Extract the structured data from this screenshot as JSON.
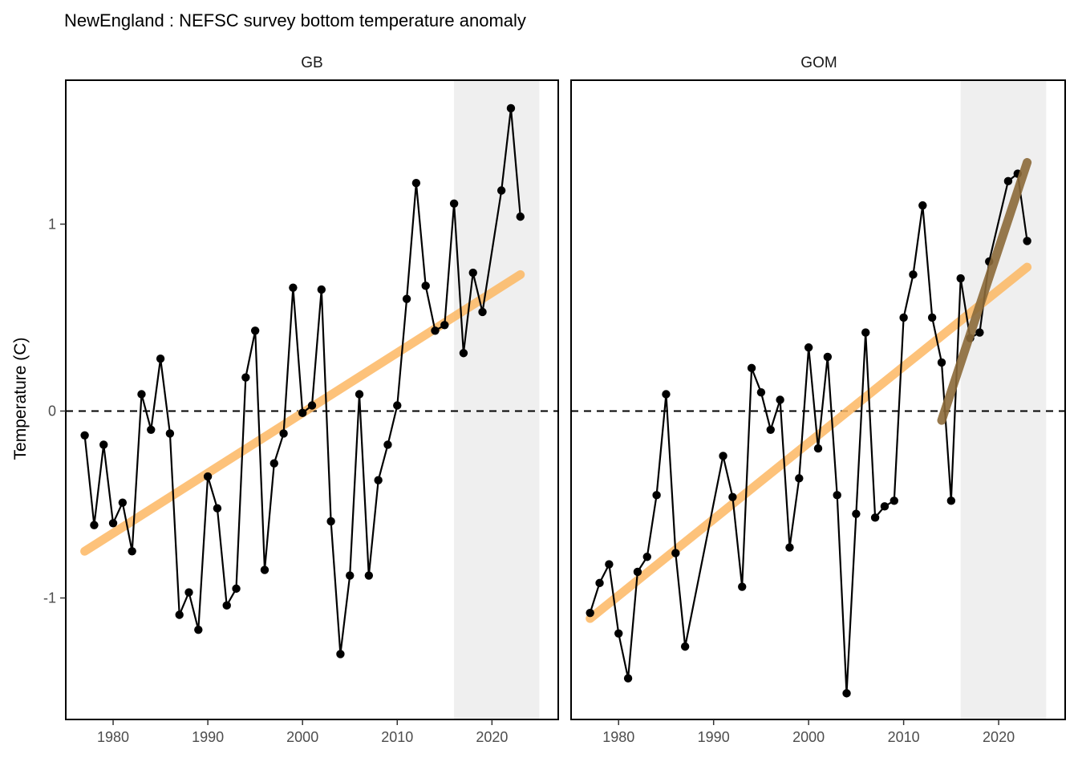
{
  "chart_data": {
    "type": "line",
    "title": "NewEngland : NEFSC survey bottom temperature anomaly",
    "ylabel": "Temperature (C)",
    "xlabel": "",
    "xlim": [
      1975,
      2027
    ],
    "ylim": [
      -1.65,
      1.77
    ],
    "x_ticks": [
      1980,
      1990,
      2000,
      2010,
      2020
    ],
    "y_ticks": [
      -1,
      0,
      1
    ],
    "reference_line": 0,
    "grid": false,
    "colors": {
      "series": "#000000",
      "long_trend": "#FDB863",
      "recent_trend": "#8C6B3A",
      "shade": "#EFEFEF",
      "reference": "#000000"
    },
    "panels": [
      {
        "name": "GB",
        "shade": [
          2016,
          2025
        ],
        "x": [
          1977,
          1978,
          1979,
          1980,
          1981,
          1982,
          1983,
          1984,
          1985,
          1986,
          1987,
          1988,
          1989,
          1990,
          1991,
          1992,
          1993,
          1994,
          1995,
          1996,
          1997,
          1998,
          1999,
          2000,
          2001,
          2002,
          2003,
          2004,
          2005,
          2006,
          2007,
          2008,
          2009,
          2010,
          2011,
          2012,
          2013,
          2014,
          2015,
          2016,
          2017,
          2018,
          2019,
          2021,
          2022,
          2023
        ],
        "y": [
          -0.13,
          -0.61,
          -0.18,
          -0.6,
          -0.49,
          -0.75,
          0.09,
          -0.1,
          0.28,
          -0.12,
          -1.09,
          -0.97,
          -1.17,
          -0.35,
          -0.52,
          -1.04,
          -0.95,
          0.18,
          0.43,
          -0.85,
          -0.28,
          -0.12,
          0.66,
          -0.01,
          0.03,
          0.65,
          -0.59,
          -1.3,
          -0.88,
          0.09,
          -0.88,
          -0.37,
          -0.18,
          0.03,
          0.6,
          1.22,
          0.67,
          0.43,
          0.46,
          1.11,
          0.31,
          0.74,
          0.53,
          1.18,
          1.62,
          1.04
        ],
        "long_trend": {
          "x": [
            1977,
            2023
          ],
          "y": [
            -0.75,
            0.73
          ]
        },
        "recent_trend": null
      },
      {
        "name": "GOM",
        "shade": [
          2016,
          2025
        ],
        "x": [
          1977,
          1978,
          1979,
          1980,
          1981,
          1982,
          1983,
          1984,
          1985,
          1986,
          1987,
          1991,
          1992,
          1993,
          1994,
          1995,
          1996,
          1997,
          1998,
          1999,
          2000,
          2001,
          2002,
          2003,
          2004,
          2005,
          2006,
          2007,
          2008,
          2009,
          2010,
          2011,
          2012,
          2013,
          2014,
          2015,
          2016,
          2017,
          2018,
          2019,
          2021,
          2022,
          2023
        ],
        "y": [
          -1.08,
          -0.92,
          -0.82,
          -1.19,
          -1.43,
          -0.86,
          -0.78,
          -0.45,
          0.09,
          -0.76,
          -1.26,
          -0.24,
          -0.46,
          -0.94,
          0.23,
          0.1,
          -0.1,
          0.06,
          -0.73,
          -0.36,
          0.34,
          -0.2,
          0.29,
          -0.45,
          -1.51,
          -0.55,
          0.42,
          -0.57,
          -0.51,
          -0.48,
          0.5,
          0.73,
          1.1,
          0.5,
          0.26,
          -0.48,
          0.71,
          0.39,
          0.42,
          0.8,
          1.23,
          1.27,
          0.91
        ],
        "long_trend": {
          "x": [
            1977,
            2023
          ],
          "y": [
            -1.11,
            0.77
          ]
        },
        "recent_trend": {
          "x": [
            2014,
            2023
          ],
          "y": [
            -0.05,
            1.33
          ]
        }
      }
    ]
  }
}
